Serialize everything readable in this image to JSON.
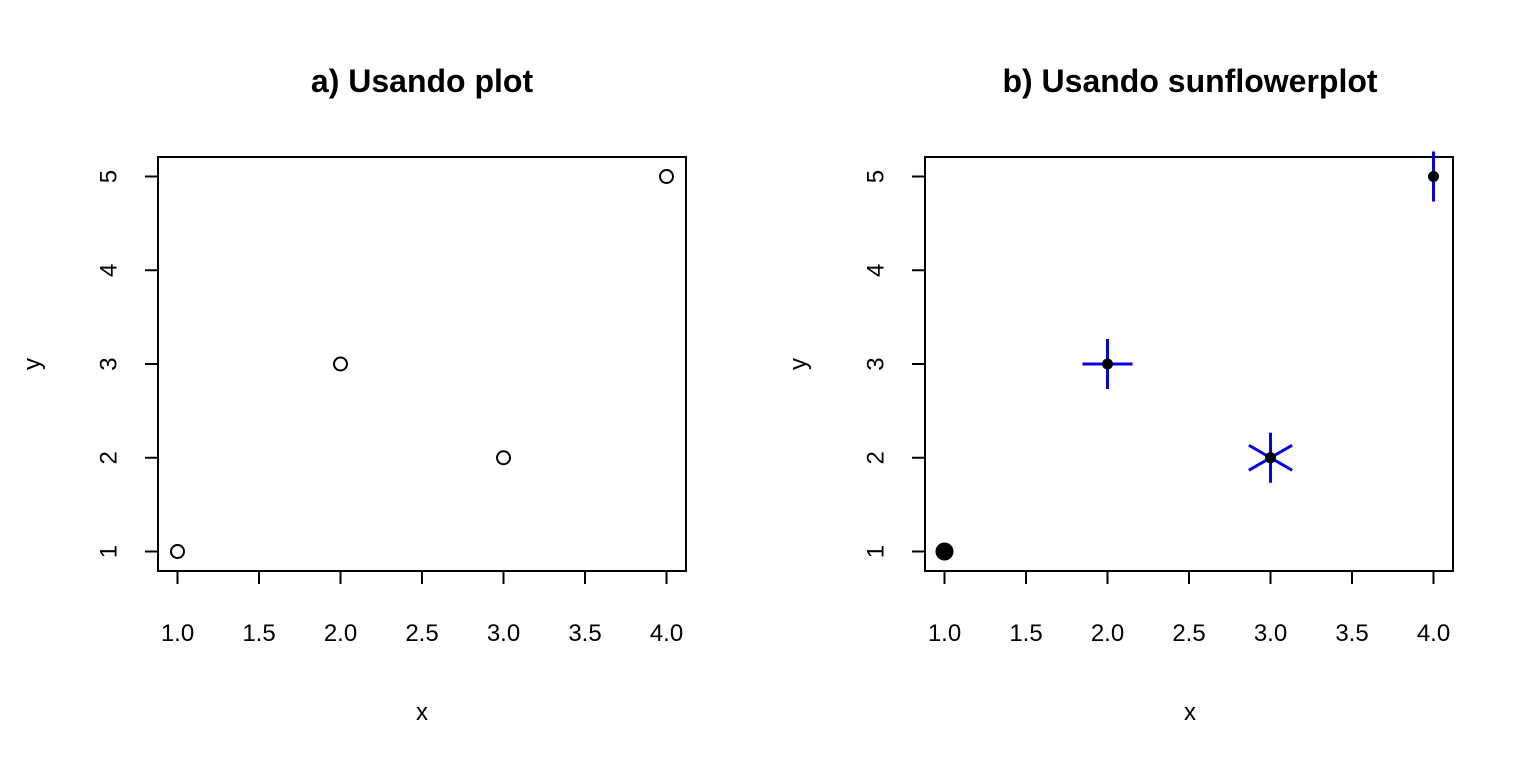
{
  "chart_data": [
    {
      "type": "scatter",
      "title": "a) Usando plot",
      "xlabel": "x",
      "ylabel": "y",
      "xlim": [
        1.0,
        4.0
      ],
      "ylim": [
        1,
        5
      ],
      "x_ticks": [
        "1.0",
        "1.5",
        "2.0",
        "2.5",
        "3.0",
        "3.5",
        "4.0"
      ],
      "y_ticks": [
        "1",
        "2",
        "3",
        "4",
        "5"
      ],
      "grid": false,
      "marker": "open-circle",
      "points": [
        {
          "x": 1,
          "y": 1
        },
        {
          "x": 2,
          "y": 3
        },
        {
          "x": 3,
          "y": 2
        },
        {
          "x": 4,
          "y": 5
        }
      ]
    },
    {
      "type": "scatter",
      "title": "b) Usando sunflowerplot",
      "xlabel": "x",
      "ylabel": "y",
      "xlim": [
        1.0,
        4.0
      ],
      "ylim": [
        1,
        5
      ],
      "x_ticks": [
        "1.0",
        "1.5",
        "2.0",
        "2.5",
        "3.0",
        "3.5",
        "4.0"
      ],
      "y_ticks": [
        "1",
        "2",
        "3",
        "4",
        "5"
      ],
      "grid": false,
      "marker": "sunflower",
      "petal_color": "#0000ee",
      "points": [
        {
          "x": 1,
          "y": 1,
          "count": 1
        },
        {
          "x": 2,
          "y": 3,
          "count": 4
        },
        {
          "x": 3,
          "y": 2,
          "count": 6
        },
        {
          "x": 4,
          "y": 5,
          "count": 2
        }
      ]
    }
  ]
}
